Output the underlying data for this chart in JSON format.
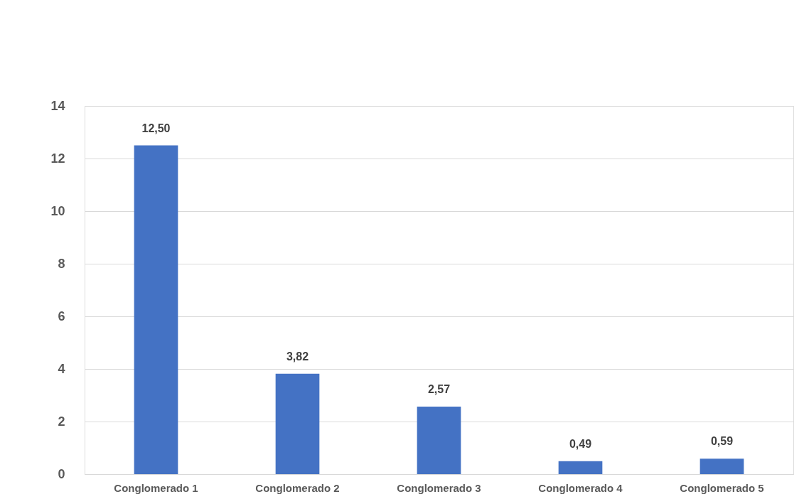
{
  "chart_data": {
    "type": "bar",
    "categories": [
      "Conglomerado 1",
      "Conglomerado 2",
      "Conglomerado 3",
      "Conglomerado 4",
      "Conglomerado 5"
    ],
    "values": [
      12.5,
      3.82,
      2.57,
      0.49,
      0.59
    ],
    "value_labels": [
      "12,50",
      "3,82",
      "2,57",
      "0,49",
      "0,59"
    ],
    "color": "#4472c4",
    "ylim": [
      0,
      14
    ],
    "yticks": [
      0,
      2,
      4,
      6,
      8,
      10,
      12,
      14
    ],
    "grid": "y"
  }
}
